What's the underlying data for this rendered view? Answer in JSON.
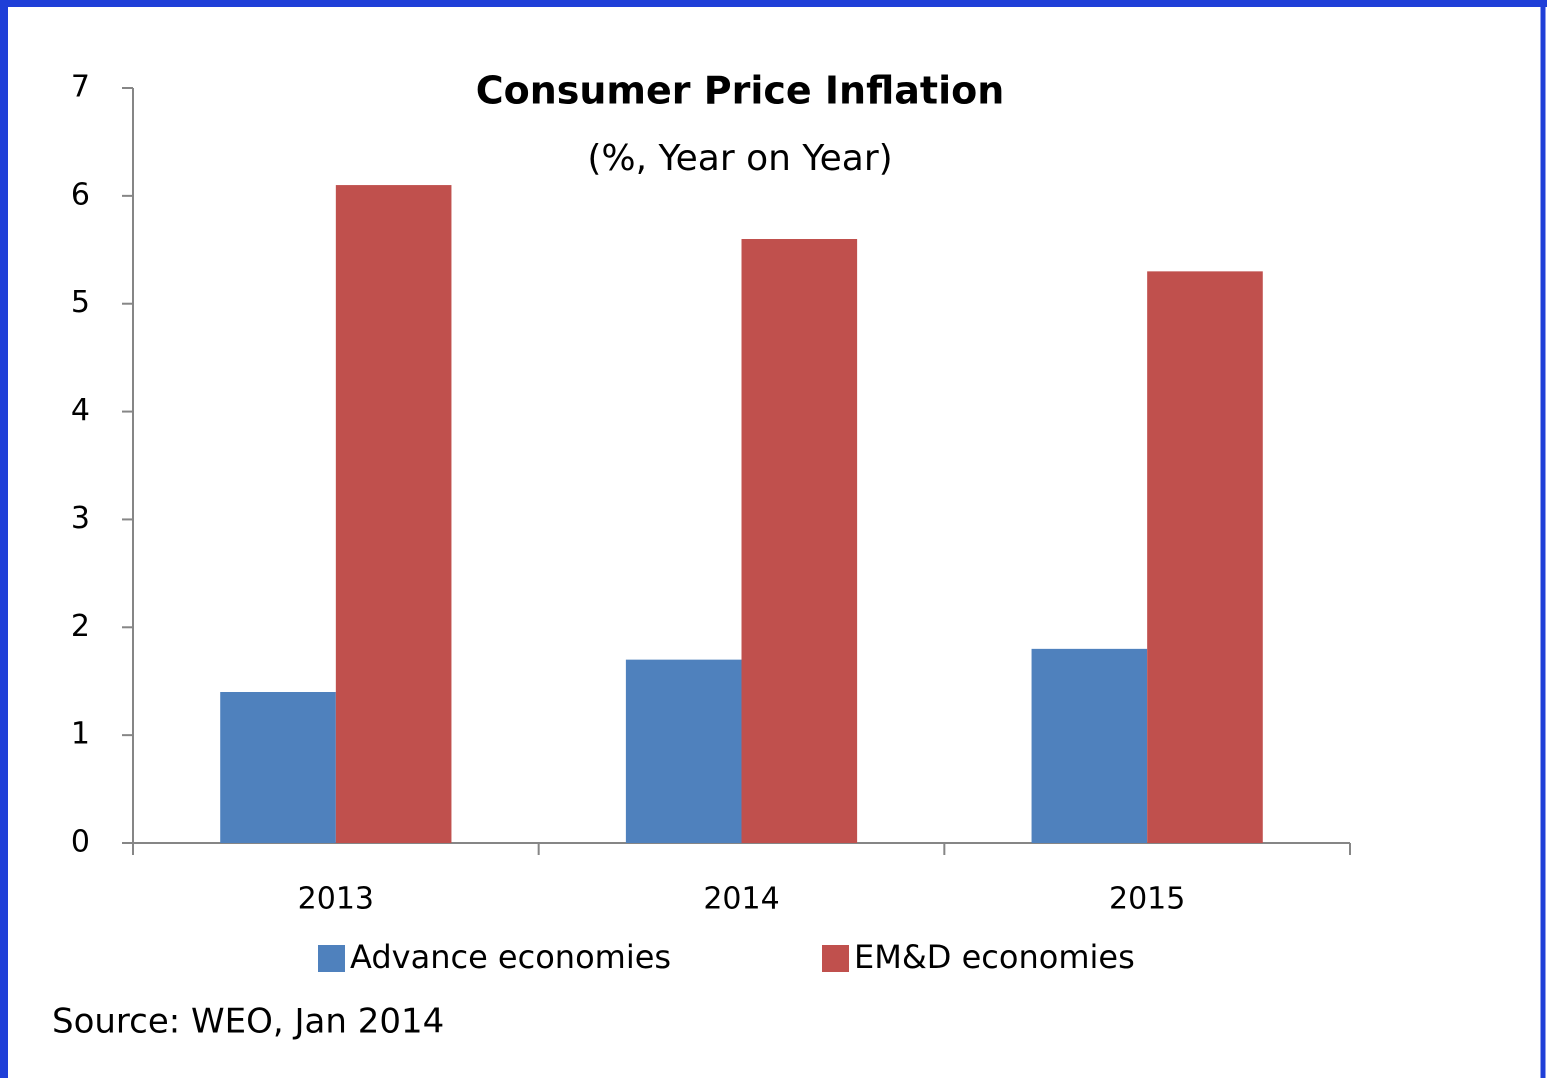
{
  "chart_data": {
    "type": "bar",
    "title": "Consumer Price Inflation",
    "subtitle": "(%, Year on Year)",
    "source": "Source: WEO, Jan 2014",
    "categories": [
      "2013",
      "2014",
      "2015"
    ],
    "series": [
      {
        "name": "Advance economies",
        "color": "#4f81bd",
        "values": [
          1.4,
          1.7,
          1.8
        ]
      },
      {
        "name": "EM&D economies",
        "color": "#c0504d",
        "values": [
          6.1,
          5.6,
          5.3
        ]
      }
    ],
    "ylim": [
      0,
      7
    ],
    "yticks": [
      0,
      1,
      2,
      3,
      4,
      5,
      6,
      7
    ],
    "grid": false,
    "legend": "bottom"
  }
}
